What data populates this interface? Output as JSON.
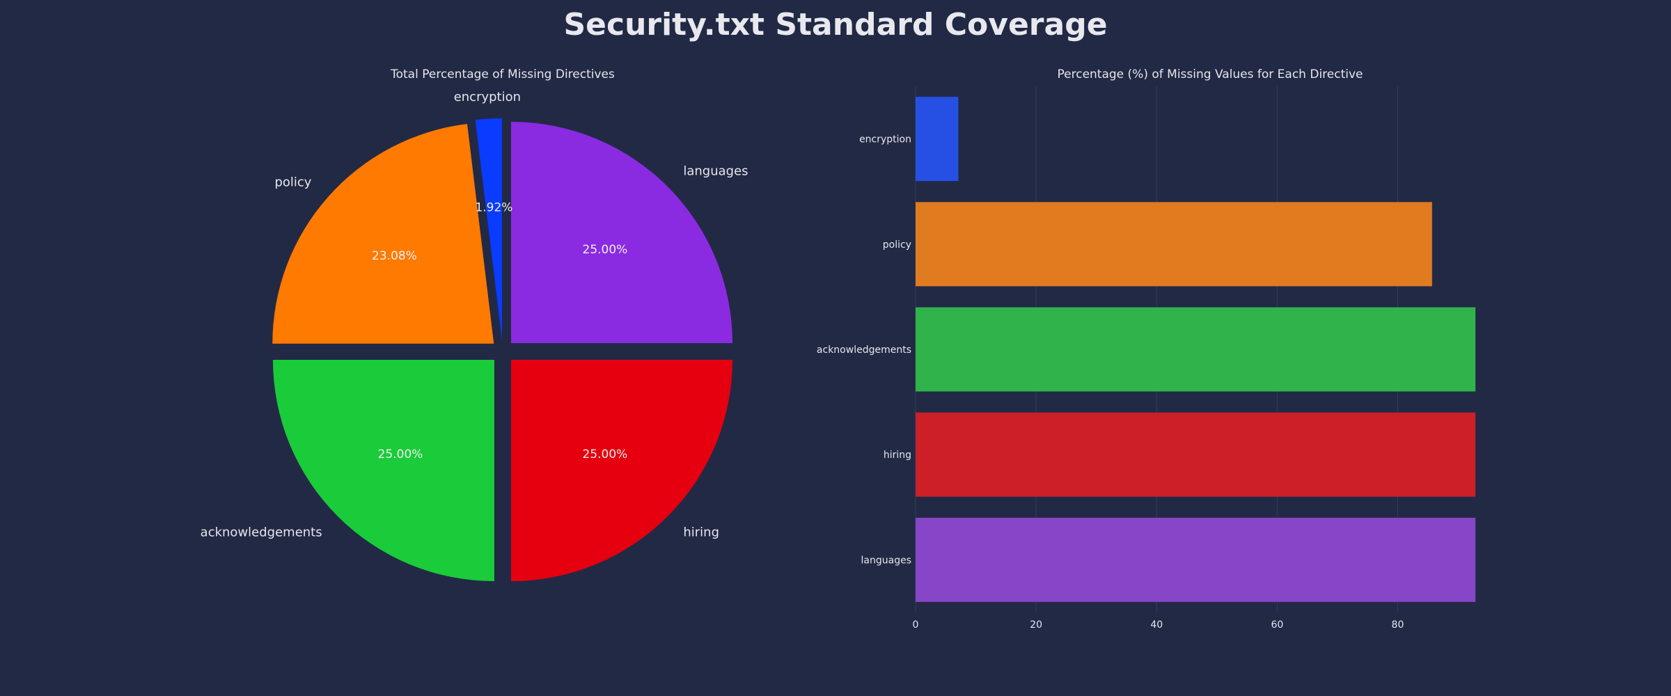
{
  "figure": {
    "suptitle": "Security.txt Standard Coverage"
  },
  "colors": {
    "background": "#222945",
    "text": "#e6e6ea",
    "grid": "#343b58"
  },
  "chart_data": [
    {
      "type": "pie",
      "title": "Total Percentage of Missing Directives",
      "start_angle_deg": 90,
      "direction": "clockwise",
      "explode": true,
      "slices": [
        {
          "label": "languages",
          "value": 25.0,
          "pct_label": "25.00%",
          "color": "#8a2be2"
        },
        {
          "label": "hiring",
          "value": 25.0,
          "pct_label": "25.00%",
          "color": "#e6000f"
        },
        {
          "label": "acknowledgements",
          "value": 25.0,
          "pct_label": "25.00%",
          "color": "#1acb3a"
        },
        {
          "label": "policy",
          "value": 23.08,
          "pct_label": "23.08%",
          "color": "#ff7a00"
        },
        {
          "label": "encryption",
          "value": 1.92,
          "pct_label": "1.92%",
          "color": "#0a3cff"
        }
      ]
    },
    {
      "type": "bar",
      "orientation": "horizontal",
      "title": "Percentage (%) of Missing Values for Each Directive",
      "xlabel": "",
      "ylabel": "",
      "xlim": [
        0,
        93
      ],
      "xticks": [
        0,
        20,
        40,
        60,
        80
      ],
      "grid": "vertical",
      "categories": [
        "encryption",
        "policy",
        "acknowledgements",
        "hiring",
        "languages"
      ],
      "values": [
        7.1,
        85.7,
        92.9,
        92.9,
        92.9
      ],
      "colors": [
        "#2650e4",
        "#e07b20",
        "#30b34a",
        "#cc1f28",
        "#8745c8"
      ]
    }
  ]
}
